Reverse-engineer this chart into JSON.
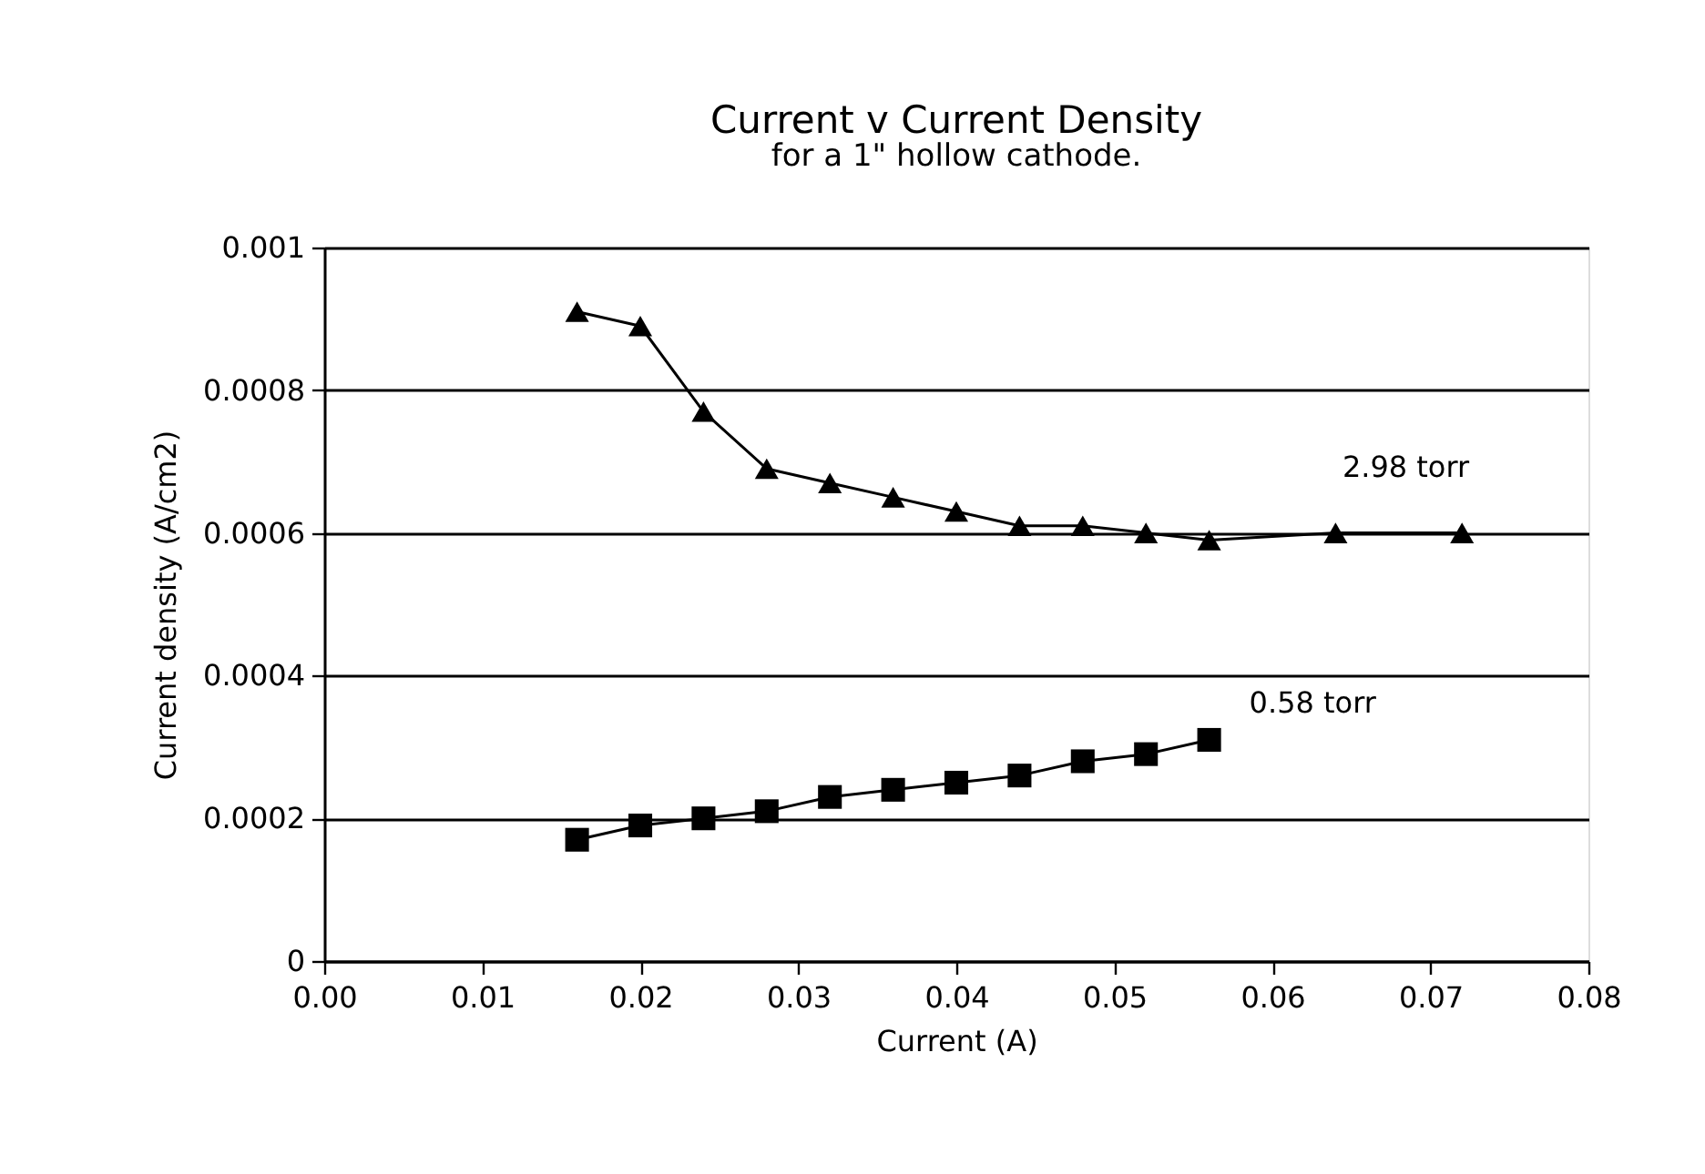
{
  "chart_data": {
    "type": "line",
    "title": "Current v Current Density",
    "subtitle": "for a 1\" hollow cathode.",
    "xlabel": "Current (A)",
    "ylabel": "Current density (A/cm2)",
    "xlim": [
      0,
      0.08
    ],
    "xticks": [
      {
        "value": 0,
        "label": "0.00"
      },
      {
        "value": 0.01,
        "label": "0.01"
      },
      {
        "value": 0.02,
        "label": "0.02"
      },
      {
        "value": 0.03,
        "label": "0.03"
      },
      {
        "value": 0.04,
        "label": "0.04"
      },
      {
        "value": 0.05,
        "label": "0.05"
      },
      {
        "value": 0.06,
        "label": "0.06"
      },
      {
        "value": 0.07,
        "label": "0.07"
      },
      {
        "value": 0.08,
        "label": "0.08"
      }
    ],
    "ylim": [
      0,
      0.001
    ],
    "yticks": [
      0,
      0.0002,
      0.0004,
      0.0006,
      0.0008,
      0.001
    ],
    "grid": "y",
    "line_style": "solid",
    "series": [
      {
        "name": "2.98 torr",
        "color": "#000000",
        "marker": "triangle",
        "x": [
          0.016,
          0.02,
          0.024,
          0.028,
          0.032,
          0.036,
          0.04,
          0.044,
          0.048,
          0.052,
          0.056,
          0.064,
          0.072
        ],
        "values": [
          0.00091,
          0.00089,
          0.00077,
          0.00069,
          0.00067,
          0.00065,
          0.00063,
          0.00061,
          0.00061,
          0.0006,
          0.00059,
          0.0006,
          0.0006
        ]
      },
      {
        "name": "0.58 torr",
        "color": "#000000",
        "marker": "square",
        "x": [
          0.016,
          0.02,
          0.024,
          0.028,
          0.032,
          0.036,
          0.04,
          0.044,
          0.048,
          0.052,
          0.056
        ],
        "values": [
          0.00017,
          0.00019,
          0.0002,
          0.00021,
          0.00023,
          0.00024,
          0.00025,
          0.00026,
          0.00028,
          0.00029,
          0.00031
        ]
      }
    ]
  }
}
